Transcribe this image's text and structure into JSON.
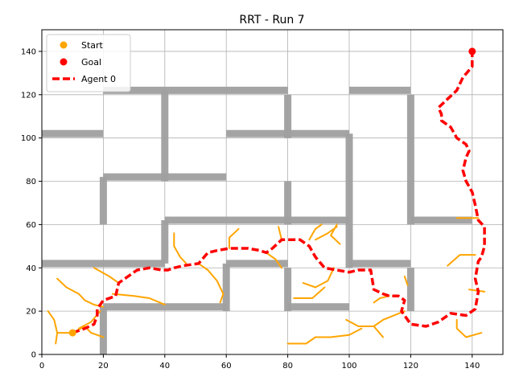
{
  "chart_data": {
    "type": "line",
    "title": "RRT - Run 7",
    "xlabel": "",
    "ylabel": "",
    "xlim": [
      0,
      150
    ],
    "ylim": [
      0,
      150
    ],
    "xticks": [
      0,
      20,
      40,
      60,
      80,
      100,
      120,
      140
    ],
    "yticks": [
      0,
      20,
      40,
      60,
      80,
      100,
      120,
      140
    ],
    "grid": true,
    "legend": {
      "placement": "top-left",
      "entries": [
        {
          "label": "Start",
          "marker": "circle",
          "color": "#ffa500"
        },
        {
          "label": "Goal",
          "marker": "circle",
          "color": "#ff0000"
        },
        {
          "label": "Agent 0",
          "marker": "dashed-line",
          "color": "#ff0000"
        }
      ]
    },
    "colors": {
      "tree": "#ffa500",
      "path": "#ff0000",
      "walls": "#a0a0a0",
      "start": "#ffa500",
      "goal": "#ff0000"
    },
    "start": [
      10,
      10
    ],
    "goal": [
      140,
      140
    ],
    "walls": [
      [
        [
          0,
          102
        ],
        [
          20,
          102
        ]
      ],
      [
        [
          20,
          122
        ],
        [
          80,
          122
        ]
      ],
      [
        [
          40,
          122
        ],
        [
          40,
          80
        ]
      ],
      [
        [
          20,
          82
        ],
        [
          60,
          82
        ]
      ],
      [
        [
          20,
          82
        ],
        [
          20,
          60
        ]
      ],
      [
        [
          60,
          102
        ],
        [
          100,
          102
        ]
      ],
      [
        [
          80,
          120
        ],
        [
          80,
          100
        ]
      ],
      [
        [
          100,
          122
        ],
        [
          120,
          122
        ]
      ],
      [
        [
          100,
          102
        ],
        [
          100,
          40
        ]
      ],
      [
        [
          80,
          80
        ],
        [
          80,
          60
        ]
      ],
      [
        [
          40,
          62
        ],
        [
          100,
          62
        ]
      ],
      [
        [
          40,
          62
        ],
        [
          40,
          42
        ]
      ],
      [
        [
          0,
          42
        ],
        [
          40,
          42
        ]
      ],
      [
        [
          60,
          42
        ],
        [
          80,
          42
        ]
      ],
      [
        [
          60,
          42
        ],
        [
          60,
          20
        ]
      ],
      [
        [
          20,
          22
        ],
        [
          60,
          22
        ]
      ],
      [
        [
          20,
          22
        ],
        [
          20,
          0
        ]
      ],
      [
        [
          80,
          40
        ],
        [
          80,
          20
        ]
      ],
      [
        [
          80,
          22
        ],
        [
          100,
          22
        ]
      ],
      [
        [
          100,
          42
        ],
        [
          120,
          42
        ]
      ],
      [
        [
          120,
          40
        ],
        [
          120,
          20
        ]
      ],
      [
        [
          120,
          120
        ],
        [
          120,
          60
        ]
      ],
      [
        [
          120,
          62
        ],
        [
          140,
          62
        ]
      ]
    ],
    "tree": [
      [
        [
          2,
          20
        ],
        [
          4,
          16
        ],
        [
          5,
          10
        ],
        [
          10,
          10
        ]
      ],
      [
        [
          5,
          10
        ],
        [
          4.5,
          5
        ]
      ],
      [
        [
          5,
          35
        ],
        [
          8,
          31
        ],
        [
          12,
          28
        ],
        [
          14,
          25
        ],
        [
          17,
          23
        ],
        [
          20,
          22
        ]
      ],
      [
        [
          17,
          40
        ],
        [
          22,
          36
        ],
        [
          25,
          33
        ]
      ],
      [
        [
          12,
          12
        ],
        [
          16,
          15
        ],
        [
          19,
          20
        ]
      ],
      [
        [
          10,
          10
        ],
        [
          14,
          13
        ],
        [
          16,
          10
        ],
        [
          20,
          8
        ]
      ],
      [
        [
          23,
          28
        ],
        [
          30,
          27
        ],
        [
          35,
          26
        ],
        [
          40,
          23
        ]
      ],
      [
        [
          43,
          56
        ],
        [
          43,
          50
        ],
        [
          45,
          45
        ],
        [
          47,
          42
        ]
      ],
      [
        [
          51,
          42
        ],
        [
          54,
          39
        ],
        [
          57,
          34
        ],
        [
          59,
          28
        ],
        [
          58,
          24
        ]
      ],
      [
        [
          61,
          49
        ],
        [
          61,
          54
        ],
        [
          64,
          58
        ]
      ],
      [
        [
          73,
          47
        ],
        [
          76,
          44
        ],
        [
          78,
          40
        ]
      ],
      [
        [
          78,
          53
        ],
        [
          77,
          59
        ]
      ],
      [
        [
          89,
          53
        ],
        [
          93,
          56
        ],
        [
          96,
          59
        ]
      ],
      [
        [
          87,
          53
        ],
        [
          89,
          58
        ],
        [
          91,
          60
        ]
      ],
      [
        [
          96,
          60
        ],
        [
          94,
          55
        ],
        [
          97,
          51
        ]
      ],
      [
        [
          85,
          33
        ],
        [
          89,
          31
        ],
        [
          93,
          34
        ],
        [
          95,
          40
        ]
      ],
      [
        [
          82,
          26
        ],
        [
          88,
          26
        ],
        [
          92,
          31
        ]
      ],
      [
        [
          80,
          5
        ],
        [
          86,
          5
        ],
        [
          89,
          8
        ],
        [
          94,
          8
        ],
        [
          100,
          9
        ],
        [
          104,
          12
        ]
      ],
      [
        [
          99,
          16
        ],
        [
          103,
          13
        ],
        [
          108,
          13
        ],
        [
          111,
          16
        ],
        [
          118,
          20
        ]
      ],
      [
        [
          108,
          13
        ],
        [
          111,
          8
        ]
      ],
      [
        [
          113,
          27
        ],
        [
          110,
          26
        ],
        [
          108,
          24
        ]
      ],
      [
        [
          119,
          32
        ],
        [
          118,
          36
        ]
      ],
      [
        [
          132,
          41
        ],
        [
          136,
          46
        ],
        [
          141,
          46
        ]
      ],
      [
        [
          135,
          63
        ],
        [
          142,
          63
        ]
      ],
      [
        [
          135,
          16
        ],
        [
          135,
          12
        ],
        [
          138,
          8
        ],
        [
          143,
          10
        ]
      ],
      [
        [
          139,
          30
        ],
        [
          144,
          29
        ]
      ]
    ],
    "path": [
      [
        10,
        10
      ],
      [
        14,
        12
      ],
      [
        17,
        14
      ],
      [
        18,
        18
      ],
      [
        18,
        21
      ],
      [
        20,
        25
      ],
      [
        24,
        27
      ],
      [
        25,
        33
      ],
      [
        28,
        36
      ],
      [
        31,
        39
      ],
      [
        35,
        40
      ],
      [
        39,
        39
      ],
      [
        41,
        39
      ],
      [
        43,
        40
      ],
      [
        46,
        41
      ],
      [
        51,
        42
      ],
      [
        54,
        47
      ],
      [
        57,
        48
      ],
      [
        61,
        49
      ],
      [
        64,
        49
      ],
      [
        67,
        49
      ],
      [
        71,
        48
      ],
      [
        73,
        47
      ],
      [
        75,
        49
      ],
      [
        78,
        53
      ],
      [
        84,
        53
      ],
      [
        87,
        50
      ],
      [
        89,
        45
      ],
      [
        92,
        40
      ],
      [
        96,
        39
      ],
      [
        100,
        38
      ],
      [
        103,
        39
      ],
      [
        107,
        39
      ],
      [
        108,
        30
      ],
      [
        111,
        28
      ],
      [
        113,
        27
      ],
      [
        116,
        27
      ],
      [
        118,
        25
      ],
      [
        117,
        20
      ],
      [
        120,
        14
      ],
      [
        125,
        13
      ],
      [
        129,
        15
      ],
      [
        133,
        19
      ],
      [
        138,
        18
      ],
      [
        141,
        21
      ],
      [
        142,
        29
      ],
      [
        141,
        35
      ],
      [
        142,
        43
      ],
      [
        143,
        45
      ],
      [
        144,
        50
      ],
      [
        144,
        59
      ],
      [
        142,
        62
      ],
      [
        141,
        69
      ],
      [
        140,
        75
      ],
      [
        138,
        80
      ],
      [
        137,
        85
      ],
      [
        138,
        91
      ],
      [
        139,
        94
      ],
      [
        138,
        97
      ],
      [
        135,
        100
      ],
      [
        133,
        105
      ],
      [
        130,
        108
      ],
      [
        130,
        111
      ],
      [
        129,
        114
      ],
      [
        132,
        118
      ],
      [
        135,
        122
      ],
      [
        137,
        128
      ],
      [
        140,
        133
      ],
      [
        140,
        140
      ]
    ]
  }
}
